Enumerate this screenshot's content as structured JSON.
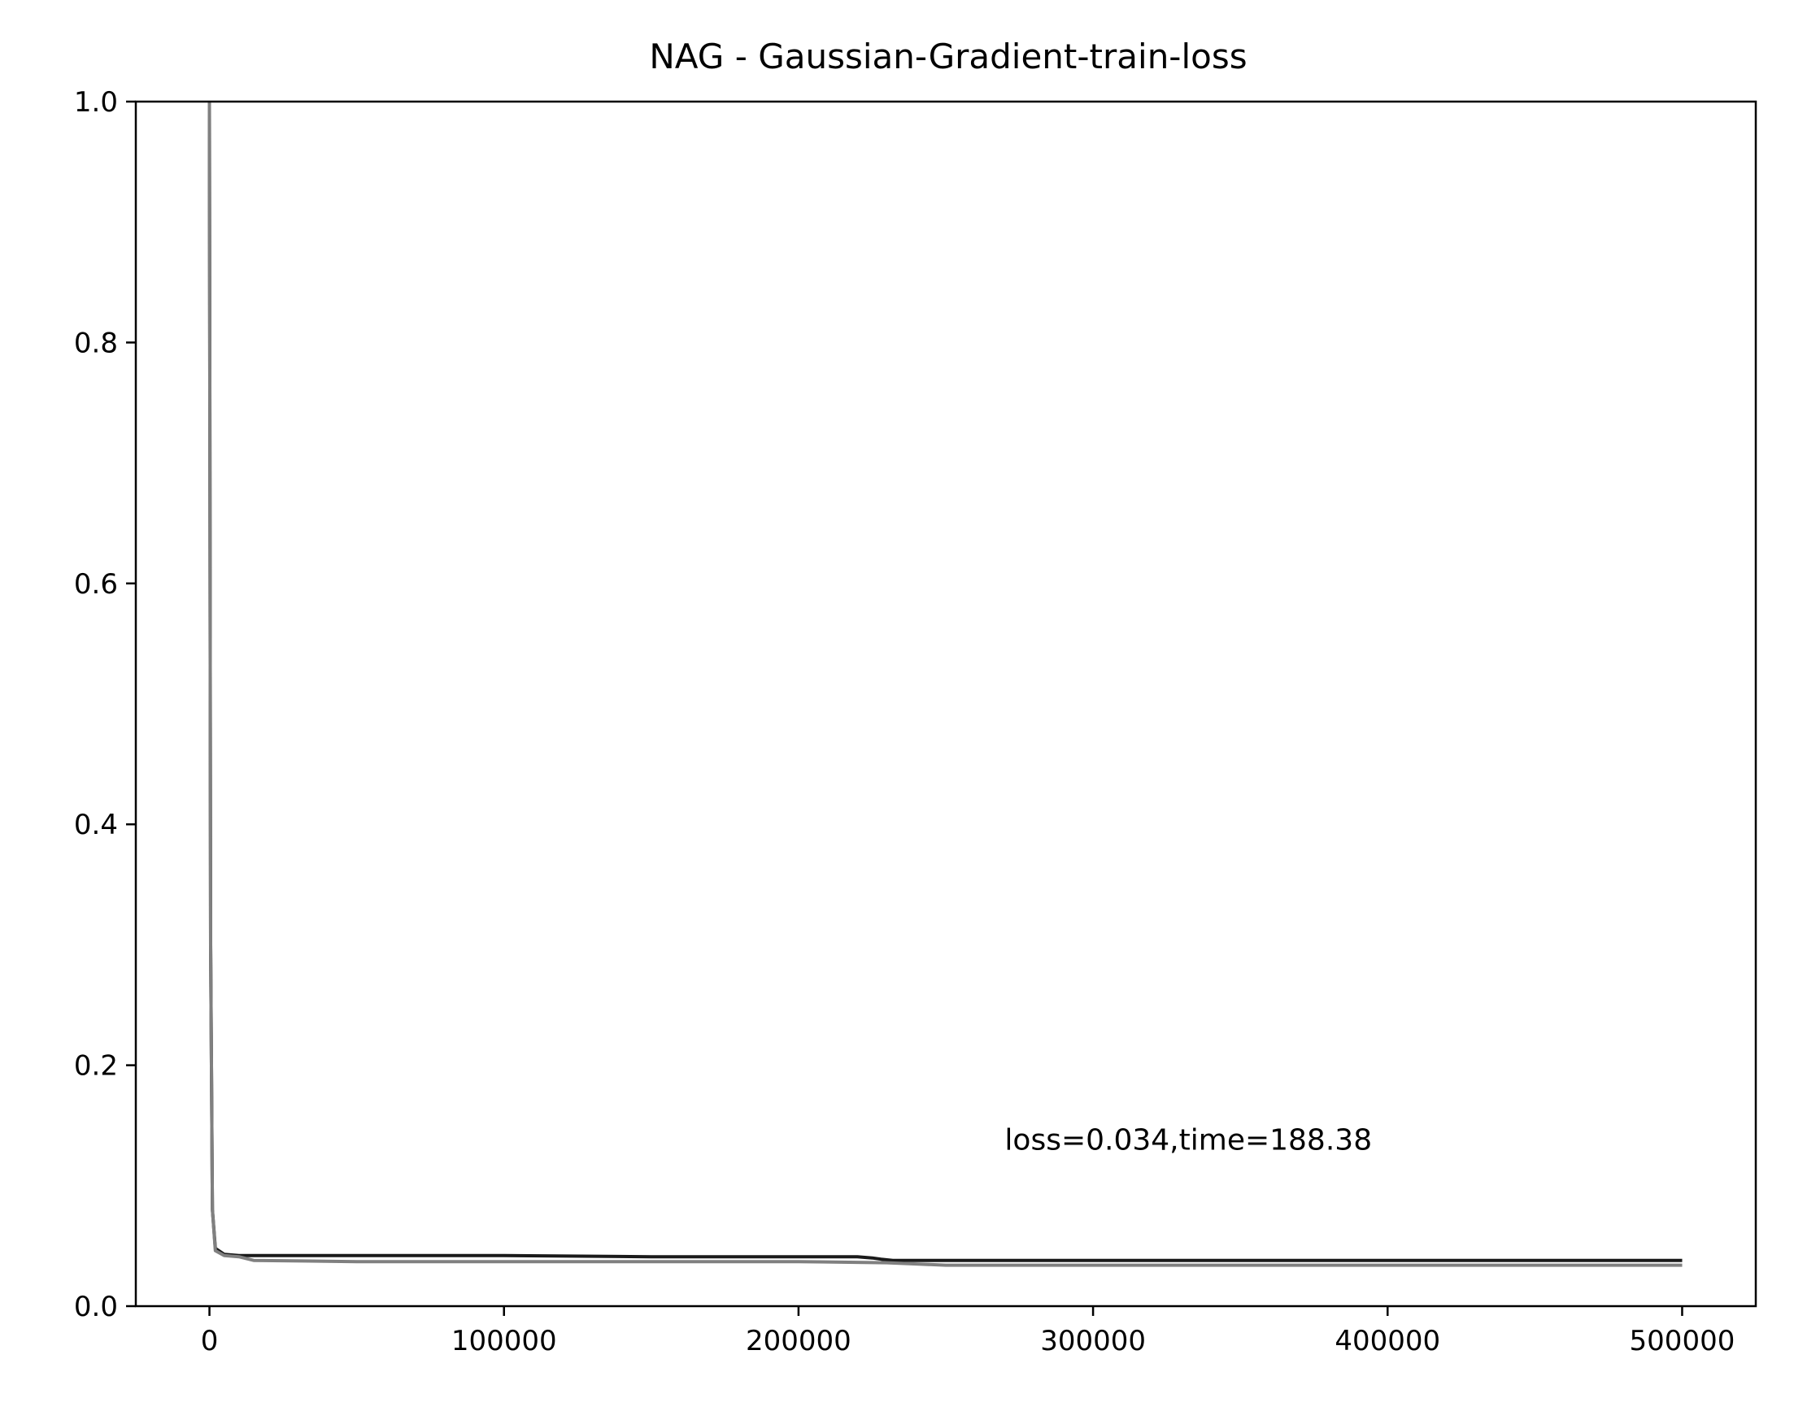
{
  "chart_data": {
    "type": "line",
    "title": "NAG - Gaussian-Gradient-train-loss",
    "xlabel": "",
    "ylabel": "",
    "xlim": [
      -25000,
      525000
    ],
    "ylim": [
      0.0,
      1.0
    ],
    "xticks": [
      0,
      100000,
      200000,
      300000,
      400000,
      500000
    ],
    "xtick_labels": [
      "0",
      "100000",
      "200000",
      "300000",
      "400000",
      "500000"
    ],
    "yticks": [
      0.0,
      0.2,
      0.4,
      0.6,
      0.8,
      1.0
    ],
    "ytick_labels": [
      "0.0",
      "0.2",
      "0.4",
      "0.6",
      "0.8",
      "1.0"
    ],
    "grid": false,
    "legend": "none",
    "annotation": {
      "text": "loss=0.034,time=188.38",
      "x": 270000,
      "y": 0.13
    },
    "series": [
      {
        "color": "#1a1a1a",
        "x": [
          0,
          400,
          1000,
          2000,
          5000,
          10000,
          50000,
          100000,
          150000,
          200000,
          220000,
          225000,
          228000,
          232000,
          240000,
          250000,
          300000,
          350000,
          400000,
          450000,
          500000
        ],
        "y": [
          1.0,
          0.3,
          0.08,
          0.048,
          0.043,
          0.042,
          0.042,
          0.042,
          0.041,
          0.041,
          0.041,
          0.04,
          0.039,
          0.038,
          0.038,
          0.038,
          0.038,
          0.038,
          0.038,
          0.038,
          0.038
        ]
      },
      {
        "color": "#808080",
        "x": [
          0,
          400,
          1000,
          2000,
          5000,
          10000,
          15000,
          50000,
          100000,
          150000,
          200000,
          230000,
          240000,
          250000,
          300000,
          350000,
          400000,
          450000,
          500000
        ],
        "y": [
          1.0,
          0.3,
          0.08,
          0.046,
          0.042,
          0.041,
          0.038,
          0.037,
          0.037,
          0.037,
          0.037,
          0.036,
          0.035,
          0.034,
          0.034,
          0.034,
          0.034,
          0.034,
          0.034
        ]
      }
    ]
  }
}
